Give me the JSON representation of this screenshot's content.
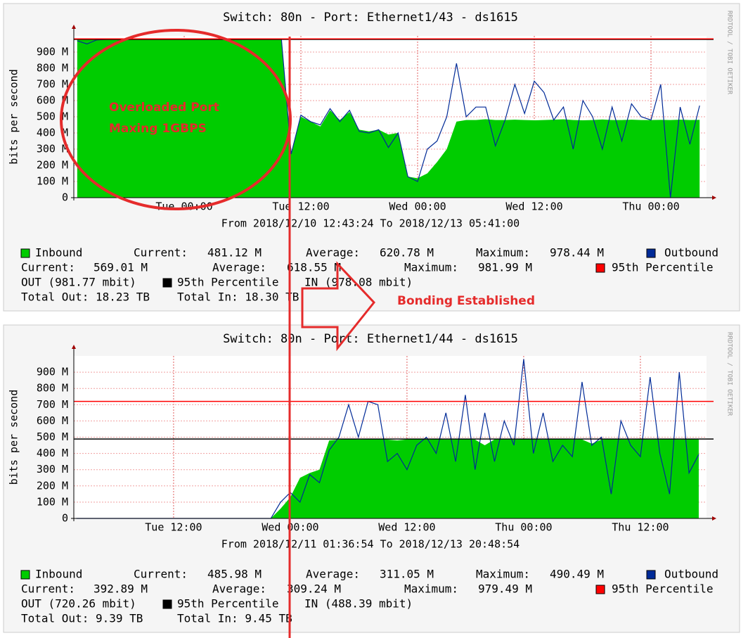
{
  "chart_data": [
    {
      "type": "area",
      "title": "Switch: 80n - Port: Ethernet1/43 - ds1615",
      "subtitle": "From 2018/12/10 12:43:24 To 2018/12/13 05:41:00",
      "ylabel": "bits per second",
      "watermark": "RRDTOOL / TOBI OETIKER",
      "categories": [
        null,
        null,
        null,
        null,
        null,
        null,
        null,
        null,
        null,
        null,
        null,
        "Tue 00:00",
        null,
        null,
        null,
        null,
        null,
        null,
        null,
        null,
        null,
        null,
        null,
        "Tue 12:00",
        null,
        null,
        null,
        null,
        null,
        null,
        null,
        null,
        null,
        null,
        null,
        "Wed 00:00",
        null,
        null,
        null,
        null,
        null,
        null,
        null,
        null,
        null,
        null,
        null,
        "Wed 12:00",
        null,
        null,
        null,
        null,
        null,
        null,
        null,
        null,
        null,
        null,
        null,
        "Thu 00:00",
        null,
        null,
        null,
        null,
        null
      ],
      "ylim": [
        0,
        1000
      ],
      "yticks": [
        0,
        {
          "value": 100,
          "label": "100 M"
        },
        {
          "value": 200,
          "label": "200 M"
        },
        {
          "value": 300,
          "label": "300 M"
        },
        {
          "value": 400,
          "label": "400 M"
        },
        {
          "value": 500,
          "label": "500 M"
        },
        {
          "value": 600,
          "label": "600 M"
        },
        {
          "value": 700,
          "label": "700 M"
        },
        {
          "value": 800,
          "label": "800 M"
        },
        {
          "value": 900,
          "label": "900 M"
        }
      ],
      "grid": true,
      "stat_labels": {
        "current": "Current:",
        "average": "Average:",
        "maximum": "Maximum:"
      },
      "series": [
        {
          "name": "Inbound",
          "color": "#00cc00",
          "style": "area",
          "current": "481.12 M",
          "average": "620.78 M",
          "maximum": "978.44 M",
          "values": [
            978,
            978,
            978,
            978,
            978,
            978,
            978,
            978,
            978,
            978,
            978,
            978,
            978,
            978,
            978,
            978,
            978,
            978,
            978,
            978,
            978,
            978,
            280,
            500,
            470,
            440,
            540,
            480,
            530,
            420,
            410,
            420,
            390,
            400,
            130,
            120,
            150,
            220,
            300,
            470,
            480,
            480,
            485,
            480,
            480,
            482,
            480,
            478,
            480,
            482,
            484,
            480,
            478,
            480,
            483,
            480,
            480,
            482,
            480,
            480,
            481,
            480,
            482,
            480,
            481
          ]
        },
        {
          "name": "Outbound",
          "color": "#002a97",
          "style": "line",
          "current": "569.01 M",
          "average": "618.55 M",
          "maximum": "981.99 M",
          "values": [
            970,
            950,
            975,
            978,
            978,
            978,
            978,
            978,
            978,
            978,
            978,
            978,
            978,
            978,
            978,
            978,
            978,
            978,
            978,
            978,
            978,
            978,
            270,
            510,
            470,
            450,
            550,
            470,
            540,
            410,
            400,
            420,
            310,
            400,
            130,
            100,
            300,
            350,
            500,
            830,
            500,
            560,
            560,
            320,
            480,
            700,
            520,
            720,
            650,
            480,
            560,
            300,
            600,
            500,
            300,
            560,
            350,
            580,
            500,
            480,
            700,
            0,
            560,
            330,
            569
          ]
        }
      ],
      "percentiles": [
        {
          "name": "95th Percentile",
          "color": "#ff0000",
          "value": 981.77,
          "label": "OUT (981.77 mbit)"
        },
        {
          "name": "95th Percentile",
          "color": "#000000",
          "value": 978.08,
          "label": "IN (978.08 mbit)"
        }
      ],
      "totals": [
        "Total Out: 18.23 TB",
        "Total In:  18.30 TB"
      ]
    },
    {
      "type": "area",
      "title": "Switch: 80n - Port: Ethernet1/44 - ds1615",
      "subtitle": "From 2018/12/11 01:36:54 To 2018/12/13 20:48:54",
      "ylabel": "bits per second",
      "watermark": "RRDTOOL / TOBI OETIKER",
      "categories": [
        null,
        null,
        null,
        null,
        null,
        null,
        null,
        null,
        null,
        null,
        "Tue 12:00",
        null,
        null,
        null,
        null,
        null,
        null,
        null,
        null,
        null,
        null,
        null,
        "Wed 00:00",
        null,
        null,
        null,
        null,
        null,
        null,
        null,
        null,
        null,
        null,
        null,
        "Wed 12:00",
        null,
        null,
        null,
        null,
        null,
        null,
        null,
        null,
        null,
        null,
        null,
        "Thu 00:00",
        null,
        null,
        null,
        null,
        null,
        null,
        null,
        null,
        null,
        null,
        null,
        "Thu 12:00",
        null,
        null,
        null,
        null,
        null,
        null
      ],
      "ylim": [
        0,
        1000
      ],
      "yticks": [
        0,
        {
          "value": 100,
          "label": "100 M"
        },
        {
          "value": 200,
          "label": "200 M"
        },
        {
          "value": 300,
          "label": "300 M"
        },
        {
          "value": 400,
          "label": "400 M"
        },
        {
          "value": 500,
          "label": "500 M"
        },
        {
          "value": 600,
          "label": "600 M"
        },
        {
          "value": 700,
          "label": "700 M"
        },
        {
          "value": 800,
          "label": "800 M"
        },
        {
          "value": 900,
          "label": "900 M"
        }
      ],
      "grid": true,
      "stat_labels": {
        "current": "Current:",
        "average": "Average:",
        "maximum": "Maximum:"
      },
      "series": [
        {
          "name": "Inbound",
          "color": "#00cc00",
          "style": "area",
          "current": "485.98 M",
          "average": "311.05 M",
          "maximum": "490.49 M",
          "values": [
            0,
            0,
            0,
            0,
            0,
            0,
            0,
            0,
            0,
            0,
            0,
            0,
            0,
            0,
            0,
            0,
            0,
            0,
            0,
            0,
            0,
            60,
            130,
            250,
            280,
            300,
            480,
            485,
            488,
            485,
            487,
            490,
            485,
            480,
            486,
            488,
            485,
            487,
            485,
            486,
            488,
            485,
            450,
            486,
            488,
            485,
            487,
            486,
            485,
            488,
            487,
            485,
            486,
            460,
            485,
            488,
            486,
            485,
            487,
            485,
            486,
            488,
            485,
            487,
            486
          ]
        },
        {
          "name": "Outbound",
          "color": "#002a97",
          "style": "line",
          "current": "392.89 M",
          "average": "309.24 M",
          "maximum": "979.49 M",
          "values": [
            0,
            0,
            0,
            0,
            0,
            0,
            0,
            0,
            0,
            0,
            0,
            0,
            0,
            0,
            0,
            0,
            0,
            0,
            0,
            0,
            0,
            100,
            160,
            100,
            270,
            220,
            420,
            500,
            700,
            500,
            720,
            700,
            350,
            400,
            300,
            450,
            500,
            400,
            650,
            350,
            760,
            300,
            650,
            350,
            600,
            450,
            980,
            400,
            650,
            350,
            450,
            380,
            840,
            450,
            500,
            150,
            600,
            450,
            380,
            870,
            400,
            150,
            900,
            280,
            393
          ]
        }
      ],
      "percentiles": [
        {
          "name": "95th Percentile",
          "color": "#ff0000",
          "value": 720.26,
          "label": "OUT (720.26 mbit)"
        },
        {
          "name": "95th Percentile",
          "color": "#000000",
          "value": 488.39,
          "label": "IN (488.39 mbit)"
        }
      ],
      "totals": [
        "Total Out: 9.39 TB",
        "Total In:  9.45 TB"
      ]
    }
  ],
  "annotations": [
    "Overloaded Port",
    "Maxing 1GBPS",
    "Bonding Established"
  ]
}
